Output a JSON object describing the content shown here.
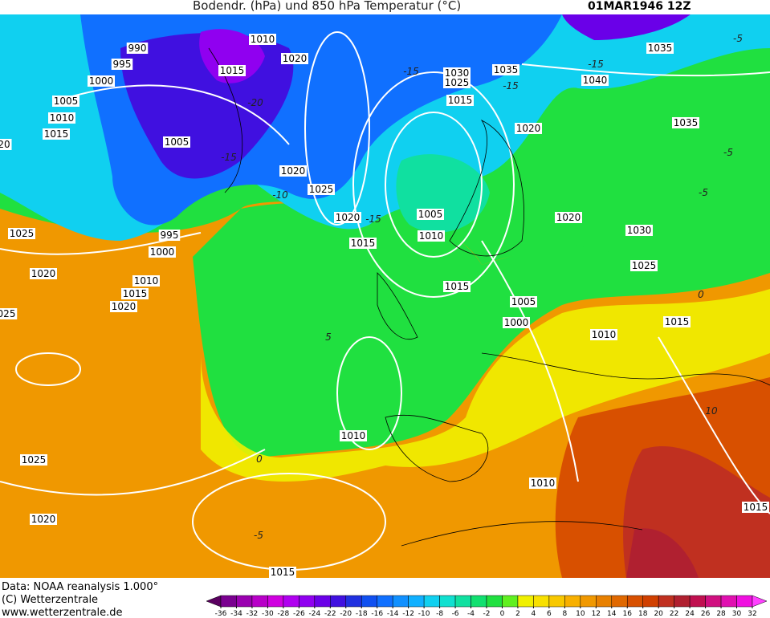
{
  "header": {
    "title": "Bodendr. (hPa) und 850 hPa Temperatur (°C)",
    "date": "01MAR1946 12Z"
  },
  "footer": {
    "source": "Data: NOAA reanalysis 1.000°",
    "copyright": "(C) Wetterzentrale",
    "url": "www.wetterzentrale.de"
  },
  "isobar_labels": [
    "990",
    "1010",
    "995",
    "1020",
    "1015",
    "1000",
    "1030",
    "1035",
    "1025",
    "1040",
    "1035",
    "1005",
    "1015",
    "1010",
    "1035",
    "1015",
    "1020",
    "1005",
    "1020",
    "1025",
    "1020",
    "1005",
    "1020",
    "1015",
    "1010",
    "1030",
    "995",
    "1025",
    "1000",
    "1025",
    "1020",
    "1010",
    "1015",
    "1015",
    "1020",
    "1005",
    "1000",
    "1015",
    "1010",
    "025",
    "20",
    "1010",
    "1025",
    "1010",
    "1015",
    "1020",
    "1015"
  ],
  "temperature_labels": [
    "-15",
    "-15",
    "-15",
    "-5",
    "-20",
    "-10",
    "-15",
    "-15",
    "-5",
    "-5",
    "0",
    "5",
    "10",
    "0",
    "-5"
  ],
  "colorbar": {
    "ticks": [
      -36,
      -34,
      -32,
      -30,
      -28,
      -26,
      -24,
      -22,
      -20,
      -18,
      -16,
      -14,
      -12,
      -10,
      -8,
      -6,
      -4,
      -2,
      0,
      2,
      4,
      6,
      8,
      10,
      12,
      14,
      16,
      18,
      20,
      22,
      24,
      26,
      28,
      30,
      32
    ],
    "colors": [
      "#5a0060",
      "#7a0090",
      "#9a00b0",
      "#b800c8",
      "#d000e0",
      "#b000f0",
      "#9000f0",
      "#6a00e8",
      "#4010e0",
      "#2030e0",
      "#1050f0",
      "#1070ff",
      "#1090ff",
      "#10b0ff",
      "#10d0f0",
      "#10e0d0",
      "#10e0a0",
      "#10e070",
      "#20e040",
      "#60f020",
      "#f0f000",
      "#f8e000",
      "#f8c800",
      "#f8b000",
      "#f09800",
      "#e88000",
      "#e06800",
      "#d85000",
      "#d04000",
      "#c03020",
      "#b02030",
      "#c01050",
      "#d01080",
      "#e010b0",
      "#f010e0",
      "#ff40ff"
    ]
  }
}
